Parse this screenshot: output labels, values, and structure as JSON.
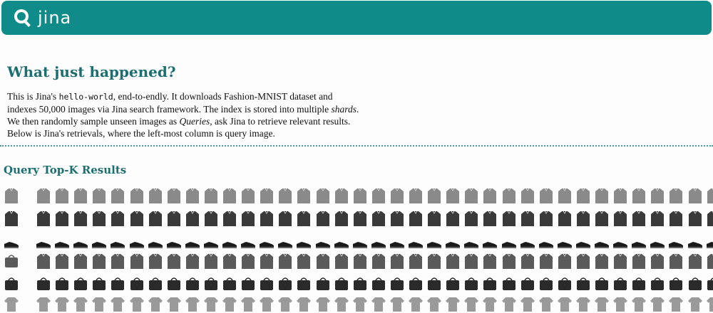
{
  "header": {
    "logo_text": "jina",
    "logo_icon": "magnifier-icon",
    "bar_color": "#0f8c8a"
  },
  "main": {
    "title": "What just happened?",
    "intro": {
      "p1": "This is Jina's ",
      "code": "hello-world",
      "p2": ", end-to-endly. It downloads Fashion-MNIST dataset and indexes 50,000 images via Jina search framework. The index is stored into multiple ",
      "shards": "shards",
      "p3": ". We then randomly sample unseen images as ",
      "queries": "Queries",
      "p4": ", ask Jina to retrieve relevant results. Below is Jina's retrievals, where the left-most column is query image."
    },
    "results_title": "Query Top-K Results"
  },
  "results": {
    "columns": 38,
    "rows": [
      {
        "query": "sweater",
        "results": "sweater",
        "shade": "#8a8a8a"
      },
      {
        "query": "sweater",
        "results": "sweater",
        "shade": "#3a3a3a"
      },
      {
        "query": "sneaker",
        "results": "sneaker",
        "shade": "#1a1a1a"
      },
      {
        "query": "bag",
        "results": "sweater",
        "shade": "#5a5a5a"
      },
      {
        "query": "bag",
        "results": "bag",
        "shade": "#2a2a2a"
      },
      {
        "query": "tshirt",
        "results": "tshirt",
        "shade": "#9a9a9a"
      }
    ]
  }
}
